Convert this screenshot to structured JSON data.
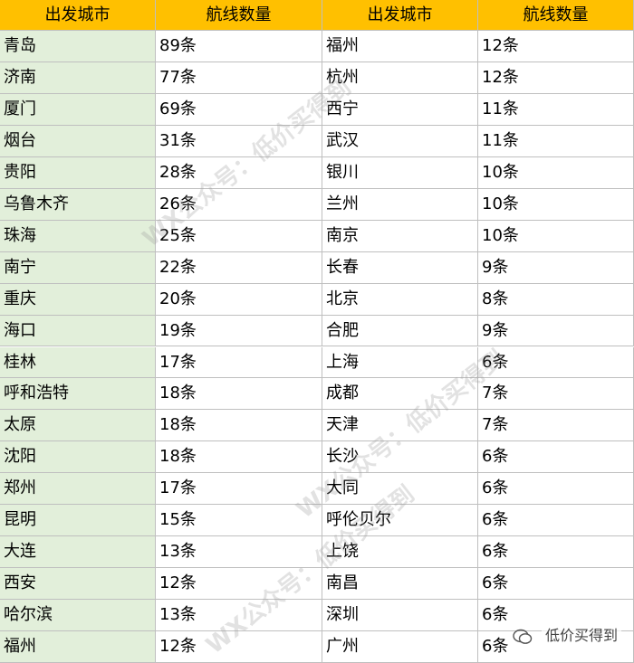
{
  "table": {
    "header": [
      "出发城市",
      "航线数量",
      "出发城市",
      "航线数量"
    ],
    "rows": [
      [
        "青岛",
        "89条",
        "福州",
        "12条"
      ],
      [
        "济南",
        "77条",
        "杭州",
        "12条"
      ],
      [
        "厦门",
        "69条",
        "西宁",
        "11条"
      ],
      [
        "烟台",
        "31条",
        "武汉",
        "11条"
      ],
      [
        "贵阳",
        "28条",
        "银川",
        "10条"
      ],
      [
        "乌鲁木齐",
        "26条",
        "兰州",
        "10条"
      ],
      [
        "珠海",
        "25条",
        "南京",
        "10条"
      ],
      [
        "南宁",
        "22条",
        "长春",
        "9条"
      ],
      [
        "重庆",
        "20条",
        "北京",
        "8条"
      ],
      [
        "海口",
        "19条",
        "合肥",
        "9条"
      ],
      [
        "桂林",
        "17条",
        "上海",
        "6条"
      ],
      [
        "呼和浩特",
        "18条",
        "成都",
        "7条"
      ],
      [
        "太原",
        "18条",
        "天津",
        "7条"
      ],
      [
        "沈阳",
        "18条",
        "长沙",
        "6条"
      ],
      [
        "郑州",
        "17条",
        "大同",
        "6条"
      ],
      [
        "昆明",
        "15条",
        "呼伦贝尔",
        "6条"
      ],
      [
        "大连",
        "13条",
        "上饶",
        "6条"
      ],
      [
        "西安",
        "12条",
        "南昌",
        "6条"
      ],
      [
        "哈尔滨",
        "13条",
        "深圳",
        "6条"
      ],
      [
        "福州",
        "12条",
        "广州",
        "6条"
      ]
    ]
  },
  "watermarks": [
    "WX公众号：低价买得到",
    "WX公众号：低价买得到",
    "WX公众号：低价买得到"
  ],
  "badge": "低价买得到"
}
